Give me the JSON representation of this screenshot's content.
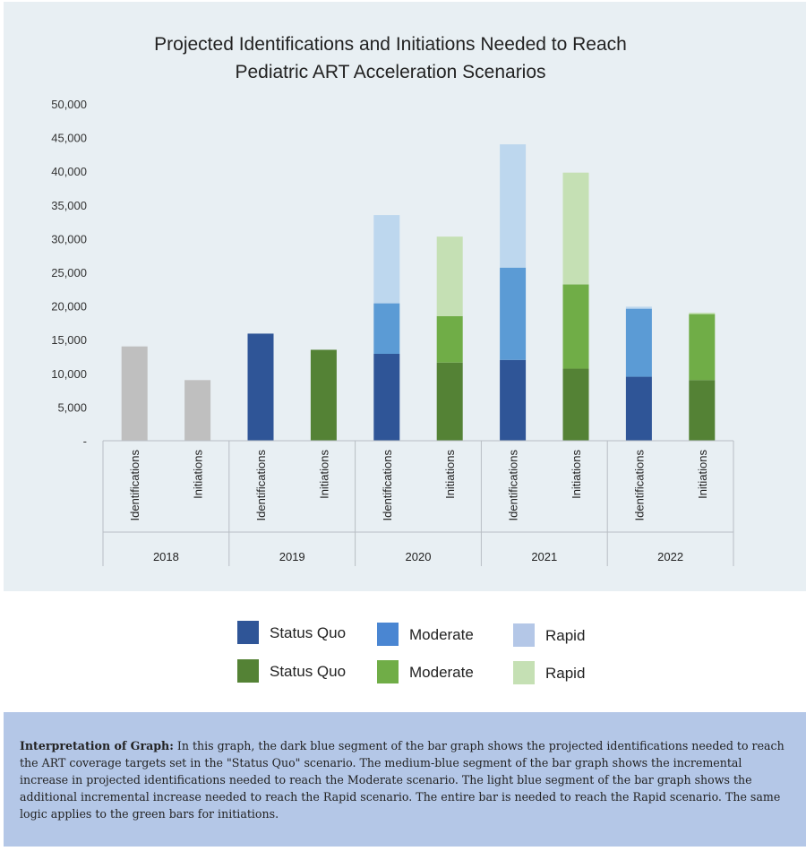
{
  "chart_data": {
    "type": "bar",
    "stacked": true,
    "title": "Projected Identifications and Initiations Needed to Reach Pediatric ART Acceleration Scenarios",
    "title_lines": [
      "Projected Identifications and Initiations Needed to Reach",
      "Pediatric ART Acceleration Scenarios"
    ],
    "ylim": [
      0,
      50000
    ],
    "yticks": [
      0,
      5000,
      10000,
      15000,
      20000,
      25000,
      30000,
      35000,
      40000,
      45000,
      50000
    ],
    "ytick_labels": [
      "-",
      "5,000",
      "10,000",
      "15,000",
      "20,000",
      "25,000",
      "30,000",
      "35,000",
      "40,000",
      "45,000",
      "50,000"
    ],
    "groups": [
      "2018",
      "2019",
      "2020",
      "2021",
      "2022"
    ],
    "bars": [
      {
        "group": "2018",
        "label": "Identifications",
        "segments": [
          {
            "value": 14000,
            "color": "#bfbfbf"
          }
        ]
      },
      {
        "group": "2018",
        "label": "Initiations",
        "segments": [
          {
            "value": 9000,
            "color": "#bfbfbf"
          }
        ]
      },
      {
        "group": "2019",
        "label": "Identifications",
        "segments": [
          {
            "value": 15900,
            "color": "#2f5597"
          }
        ]
      },
      {
        "group": "2019",
        "label": "Initiations",
        "segments": [
          {
            "value": 13500,
            "color": "#548235"
          }
        ]
      },
      {
        "group": "2020",
        "label": "Identifications",
        "segments": [
          {
            "value": 12900,
            "color": "#2f5597"
          },
          {
            "value": 7500,
            "color": "#5b9bd5"
          },
          {
            "value": 13100,
            "color": "#bdd7ee"
          }
        ]
      },
      {
        "group": "2020",
        "label": "Initiations",
        "segments": [
          {
            "value": 11600,
            "color": "#548235"
          },
          {
            "value": 6900,
            "color": "#70ad47"
          },
          {
            "value": 11800,
            "color": "#c5e0b4"
          }
        ]
      },
      {
        "group": "2021",
        "label": "Identifications",
        "segments": [
          {
            "value": 12000,
            "color": "#2f5597"
          },
          {
            "value": 13700,
            "color": "#5b9bd5"
          },
          {
            "value": 18300,
            "color": "#bdd7ee"
          }
        ]
      },
      {
        "group": "2021",
        "label": "Initiations",
        "segments": [
          {
            "value": 10700,
            "color": "#548235"
          },
          {
            "value": 12500,
            "color": "#70ad47"
          },
          {
            "value": 16600,
            "color": "#c5e0b4"
          }
        ]
      },
      {
        "group": "2022",
        "label": "Identifications",
        "segments": [
          {
            "value": 9500,
            "color": "#2f5597"
          },
          {
            "value": 10100,
            "color": "#5b9bd5"
          },
          {
            "value": 300,
            "color": "#bdd7ee"
          }
        ]
      },
      {
        "group": "2022",
        "label": "Initiations",
        "segments": [
          {
            "value": 9000,
            "color": "#548235"
          },
          {
            "value": 9800,
            "color": "#70ad47"
          },
          {
            "value": 200,
            "color": "#c5e0b4"
          }
        ]
      }
    ],
    "colors": {
      "baseline_grey": "#bfbfbf",
      "status_quo_blue": "#2f5597",
      "moderate_blue": "#5b9bd5",
      "rapid_blue": "#bdd7ee",
      "status_quo_green": "#548235",
      "moderate_green": "#70ad47",
      "rapid_green": "#c5e0b4"
    },
    "grid": false
  },
  "legend": {
    "items": [
      {
        "label": "Status Quo",
        "color": "#2f5597"
      },
      {
        "label": "Moderate",
        "color": "#4a86d2"
      },
      {
        "label": "Rapid",
        "color": "#b4c7e7"
      },
      {
        "label": "Status Quo",
        "color": "#548235"
      },
      {
        "label": "Moderate",
        "color": "#70ad47"
      },
      {
        "label": "Rapid",
        "color": "#c5e0b4"
      }
    ]
  },
  "note": {
    "heading": "Interpretation of Graph:",
    "text": " In this graph, the dark blue segment of the bar graph shows the projected identifications needed to reach the ART coverage targets set in the \"Status Quo\" scenario. The medium-blue segment of the bar graph shows the incremental increase in projected identifications needed to reach the Moderate scenario. The light blue segment of the bar graph shows the additional incremental increase needed to reach the Rapid scenario. The entire bar is needed to reach the Rapid scenario. The same logic applies to the green bars for initiations."
  }
}
